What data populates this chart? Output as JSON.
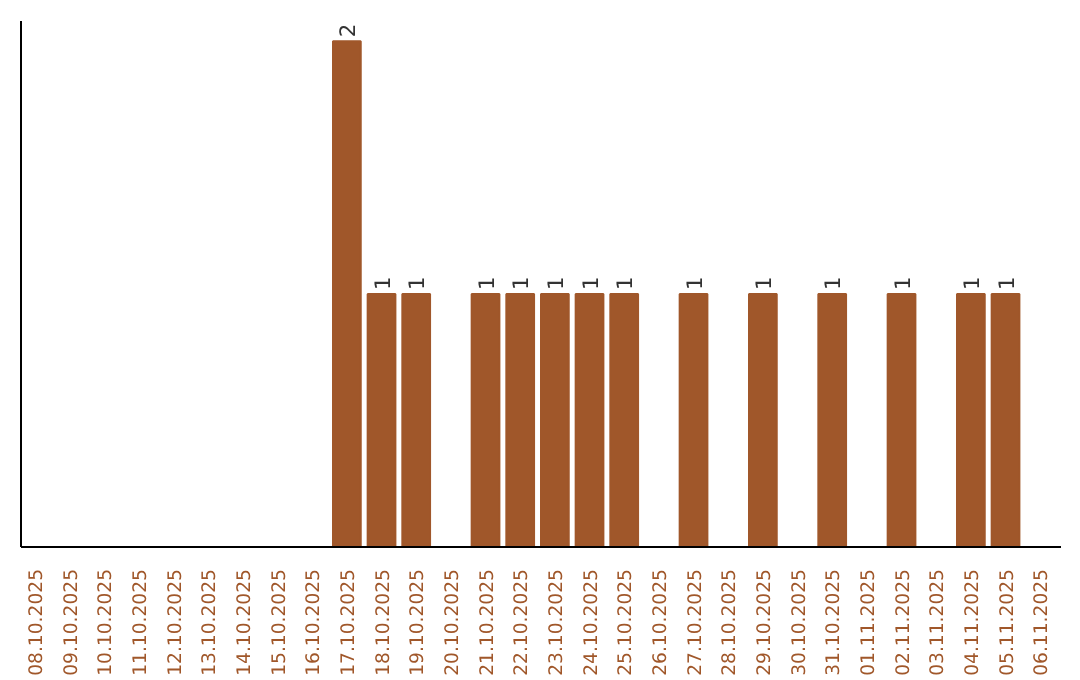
{
  "chart_data": {
    "type": "bar",
    "categories": [
      "08.10.2025",
      "09.10.2025",
      "10.10.2025",
      "11.10.2025",
      "12.10.2025",
      "13.10.2025",
      "14.10.2025",
      "15.10.2025",
      "16.10.2025",
      "17.10.2025",
      "18.10.2025",
      "19.10.2025",
      "20.10.2025",
      "21.10.2025",
      "22.10.2025",
      "23.10.2025",
      "24.10.2025",
      "25.10.2025",
      "26.10.2025",
      "27.10.2025",
      "28.10.2025",
      "29.10.2025",
      "30.10.2025",
      "31.10.2025",
      "01.11.2025",
      "02.11.2025",
      "03.11.2025",
      "04.11.2025",
      "05.11.2025",
      "06.11.2025"
    ],
    "values": [
      0,
      0,
      0,
      0,
      0,
      0,
      0,
      0,
      0,
      2,
      1,
      1,
      0,
      1,
      1,
      1,
      1,
      1,
      0,
      1,
      0,
      1,
      0,
      1,
      0,
      1,
      0,
      1,
      1,
      0
    ],
    "value_labels": [
      null,
      null,
      null,
      null,
      null,
      null,
      null,
      null,
      null,
      "2",
      "1",
      "1",
      null,
      "1",
      "1",
      "1",
      "1",
      "1",
      null,
      "1",
      null,
      "1",
      null,
      "1",
      null,
      "1",
      null,
      "1",
      "1",
      null
    ],
    "color": "#a0572a",
    "ylim": [
      0,
      2.08
    ],
    "tick_labels": "x",
    "grid": false
  }
}
